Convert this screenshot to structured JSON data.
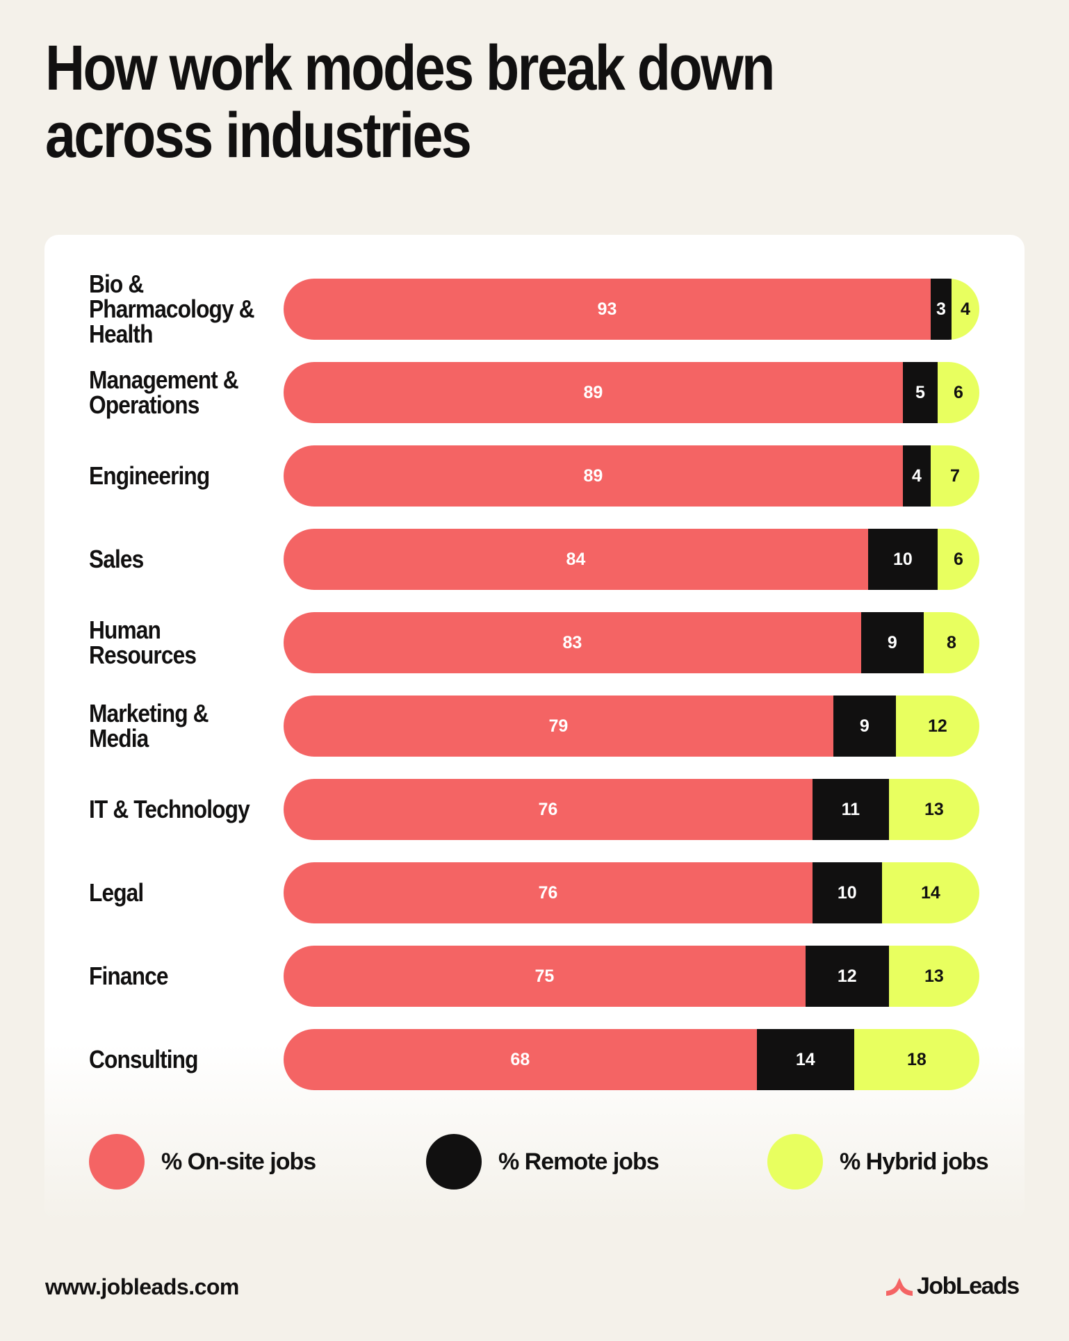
{
  "chart_data": {
    "type": "bar",
    "orientation": "horizontal",
    "stacked": true,
    "title": "How work modes break down across industries",
    "title_lines": [
      "How work modes break down",
      "across industries"
    ],
    "categories": [
      "Bio & Pharmacology & Health",
      "Management & Operations",
      "Engineering",
      "Sales",
      "Human Resources",
      "Marketing & Media",
      "IT & Technology",
      "Legal",
      "Finance",
      "Consulting"
    ],
    "category_lines": [
      [
        "Bio &",
        "Pharmacology &",
        "Health"
      ],
      [
        "Management &",
        "Operations"
      ],
      [
        "Engineering"
      ],
      [
        "Sales"
      ],
      [
        "Human",
        "Resources"
      ],
      [
        "Marketing &",
        "Media"
      ],
      [
        "IT & Technology"
      ],
      [
        "Legal"
      ],
      [
        "Finance"
      ],
      [
        "Consulting"
      ]
    ],
    "series": [
      {
        "name": "% On-site jobs",
        "color": "#F46464",
        "values": [
          93,
          89,
          89,
          84,
          83,
          79,
          76,
          76,
          75,
          68
        ]
      },
      {
        "name": "% Remote jobs",
        "color": "#111010",
        "values": [
          3,
          5,
          4,
          10,
          9,
          9,
          11,
          10,
          12,
          14
        ]
      },
      {
        "name": "% Hybrid jobs",
        "color": "#E8FF5F",
        "values": [
          4,
          6,
          7,
          6,
          8,
          12,
          13,
          14,
          13,
          18
        ]
      }
    ],
    "xlim": [
      0,
      100
    ],
    "data_labels": true,
    "grid": false,
    "legend_position": "bottom"
  },
  "footer": {
    "url": "www.jobleads.com",
    "brand": "JobLeads"
  },
  "colors": {
    "background": "#F4F1EA",
    "brand_accent": "#F46464"
  }
}
